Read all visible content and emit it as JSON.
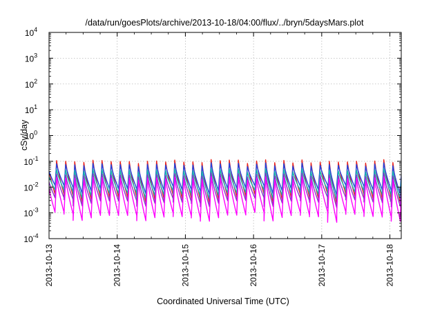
{
  "chart_data": {
    "type": "line",
    "title": "/data/run/goesPlots/archive/2013-10-18/04:00/flux/../bryn/5daysMars.plot",
    "xlabel": "Coordinated Universal Time (UTC)",
    "ylabel": "cSv/day",
    "yscale": "log",
    "ylim": [
      0.0001,
      10000
    ],
    "xlim": [
      "2013-10-13",
      "2013-10-18 04:00"
    ],
    "y_ticks": [
      {
        "base": "10",
        "exp": "-4"
      },
      {
        "base": "10",
        "exp": "-3"
      },
      {
        "base": "10",
        "exp": "-2"
      },
      {
        "base": "10",
        "exp": "-1"
      },
      {
        "base": "10",
        "exp": "0"
      },
      {
        "base": "10",
        "exp": "1"
      },
      {
        "base": "10",
        "exp": "2"
      },
      {
        "base": "10",
        "exp": "3"
      },
      {
        "base": "10",
        "exp": "4"
      }
    ],
    "x_ticks": [
      "2013-10-13",
      "2013-10-14",
      "2013-10-15",
      "2013-10-16",
      "2013-10-17",
      "2013-10-18"
    ],
    "grid": true,
    "legend": "none",
    "series": [
      {
        "color": "#e8211b",
        "peak": 0.1,
        "trough": 0.0055
      },
      {
        "color": "#2244dd",
        "peak": 0.075,
        "trough": 0.012
      },
      {
        "color": "#15b8b0",
        "peak": 0.045,
        "trough": 0.008
      },
      {
        "color": "#8a35c8",
        "peak": 0.03,
        "trough": 0.004
      },
      {
        "color": "#ff00ff",
        "peak": 0.022,
        "trough": 0.0011
      }
    ],
    "cycle": {
      "period_hours": 3.2,
      "rise_fraction": 0.18
    }
  }
}
